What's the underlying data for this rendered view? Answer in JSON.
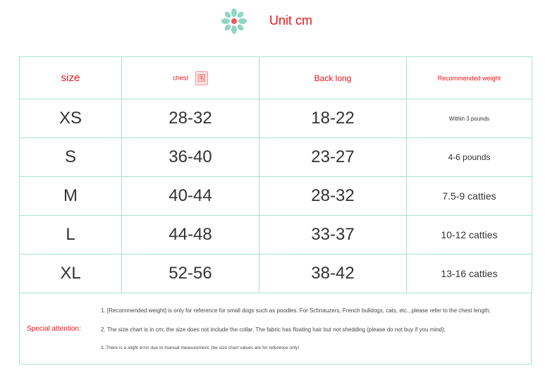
{
  "header": {
    "unit_label": "Unit cm",
    "accent": "#e8141a",
    "border_color": "#a6e3d2"
  },
  "table": {
    "headers": [
      "size",
      "chest",
      "Back long",
      "Recommended weight"
    ],
    "rows": [
      [
        "XS",
        "28-32",
        "18-22",
        "Within 3 pounds"
      ],
      [
        "S",
        "36-40",
        "23-27",
        "4-6 pounds"
      ],
      [
        "M",
        "40-44",
        "28-32",
        "7.5-9 catties"
      ],
      [
        "L",
        "44-48",
        "33-37",
        "10-12 catties"
      ],
      [
        "XL",
        "52-56",
        "38-42",
        "13-16 catties"
      ]
    ]
  },
  "notes": {
    "label": "Special attention:",
    "items": [
      "1. [Recommended weight] is only for reference for small dogs such as poodles. For Schnauzers, French bulldogs, cats, etc., please refer to the chest length;",
      "2. The size chart is in cm; the size does not include the collar. The fabric has floating hair but not shedding (please do not buy if you mind);",
      "3. There is a slight error due to manual measurement, the size chart values are for reference only!"
    ]
  }
}
